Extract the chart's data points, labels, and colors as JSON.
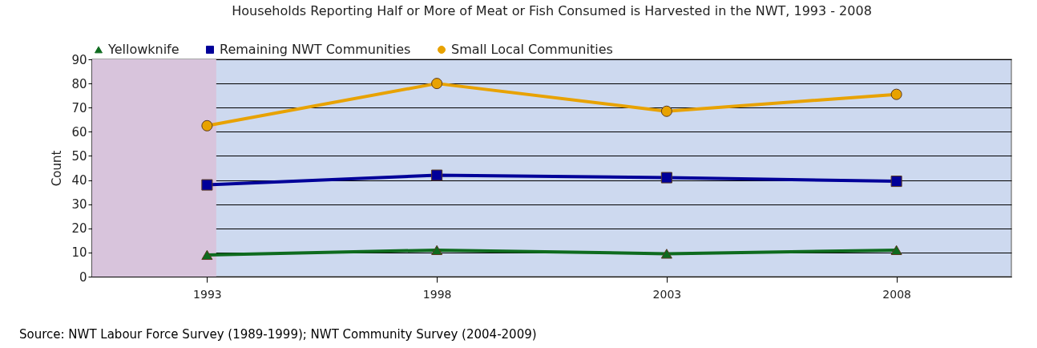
{
  "chart_data": {
    "type": "line",
    "title": "Households Reporting Half or More of Meat or Fish Consumed is Harvested in the NWT, 1993 - 2008",
    "ylabel": "Count",
    "x": [
      1993,
      1998,
      2003,
      2008
    ],
    "xlim": [
      1990.5,
      2010.5
    ],
    "xticks": [
      1993,
      1998,
      2003,
      2008
    ],
    "ylim": [
      0,
      90
    ],
    "yticks": [
      0,
      10,
      20,
      30,
      40,
      50,
      60,
      70,
      80,
      90
    ],
    "grid": "y",
    "legend": "top",
    "line_style": "solid",
    "series": [
      {
        "name": "Yellowknife",
        "color": "#0e6b1e",
        "marker": "triangle",
        "values": [
          9,
          11,
          9.5,
          11
        ]
      },
      {
        "name": "Remaining NWT Communities",
        "color": "#000099",
        "marker": "square",
        "values": [
          38,
          42,
          41,
          39.5
        ]
      },
      {
        "name": "Small Local Communities",
        "color": "#e8a200",
        "marker": "circle",
        "values": [
          62.5,
          80,
          68.5,
          75.5
        ]
      }
    ],
    "bands": [
      {
        "axis": "x",
        "from": 1990.5,
        "to": 1993.2,
        "color": "#d8c4dc"
      }
    ],
    "annotations": [
      "Source: NWT Labour Force Survey (1989-1999); NWT Community Survey (2004-2009)"
    ]
  }
}
